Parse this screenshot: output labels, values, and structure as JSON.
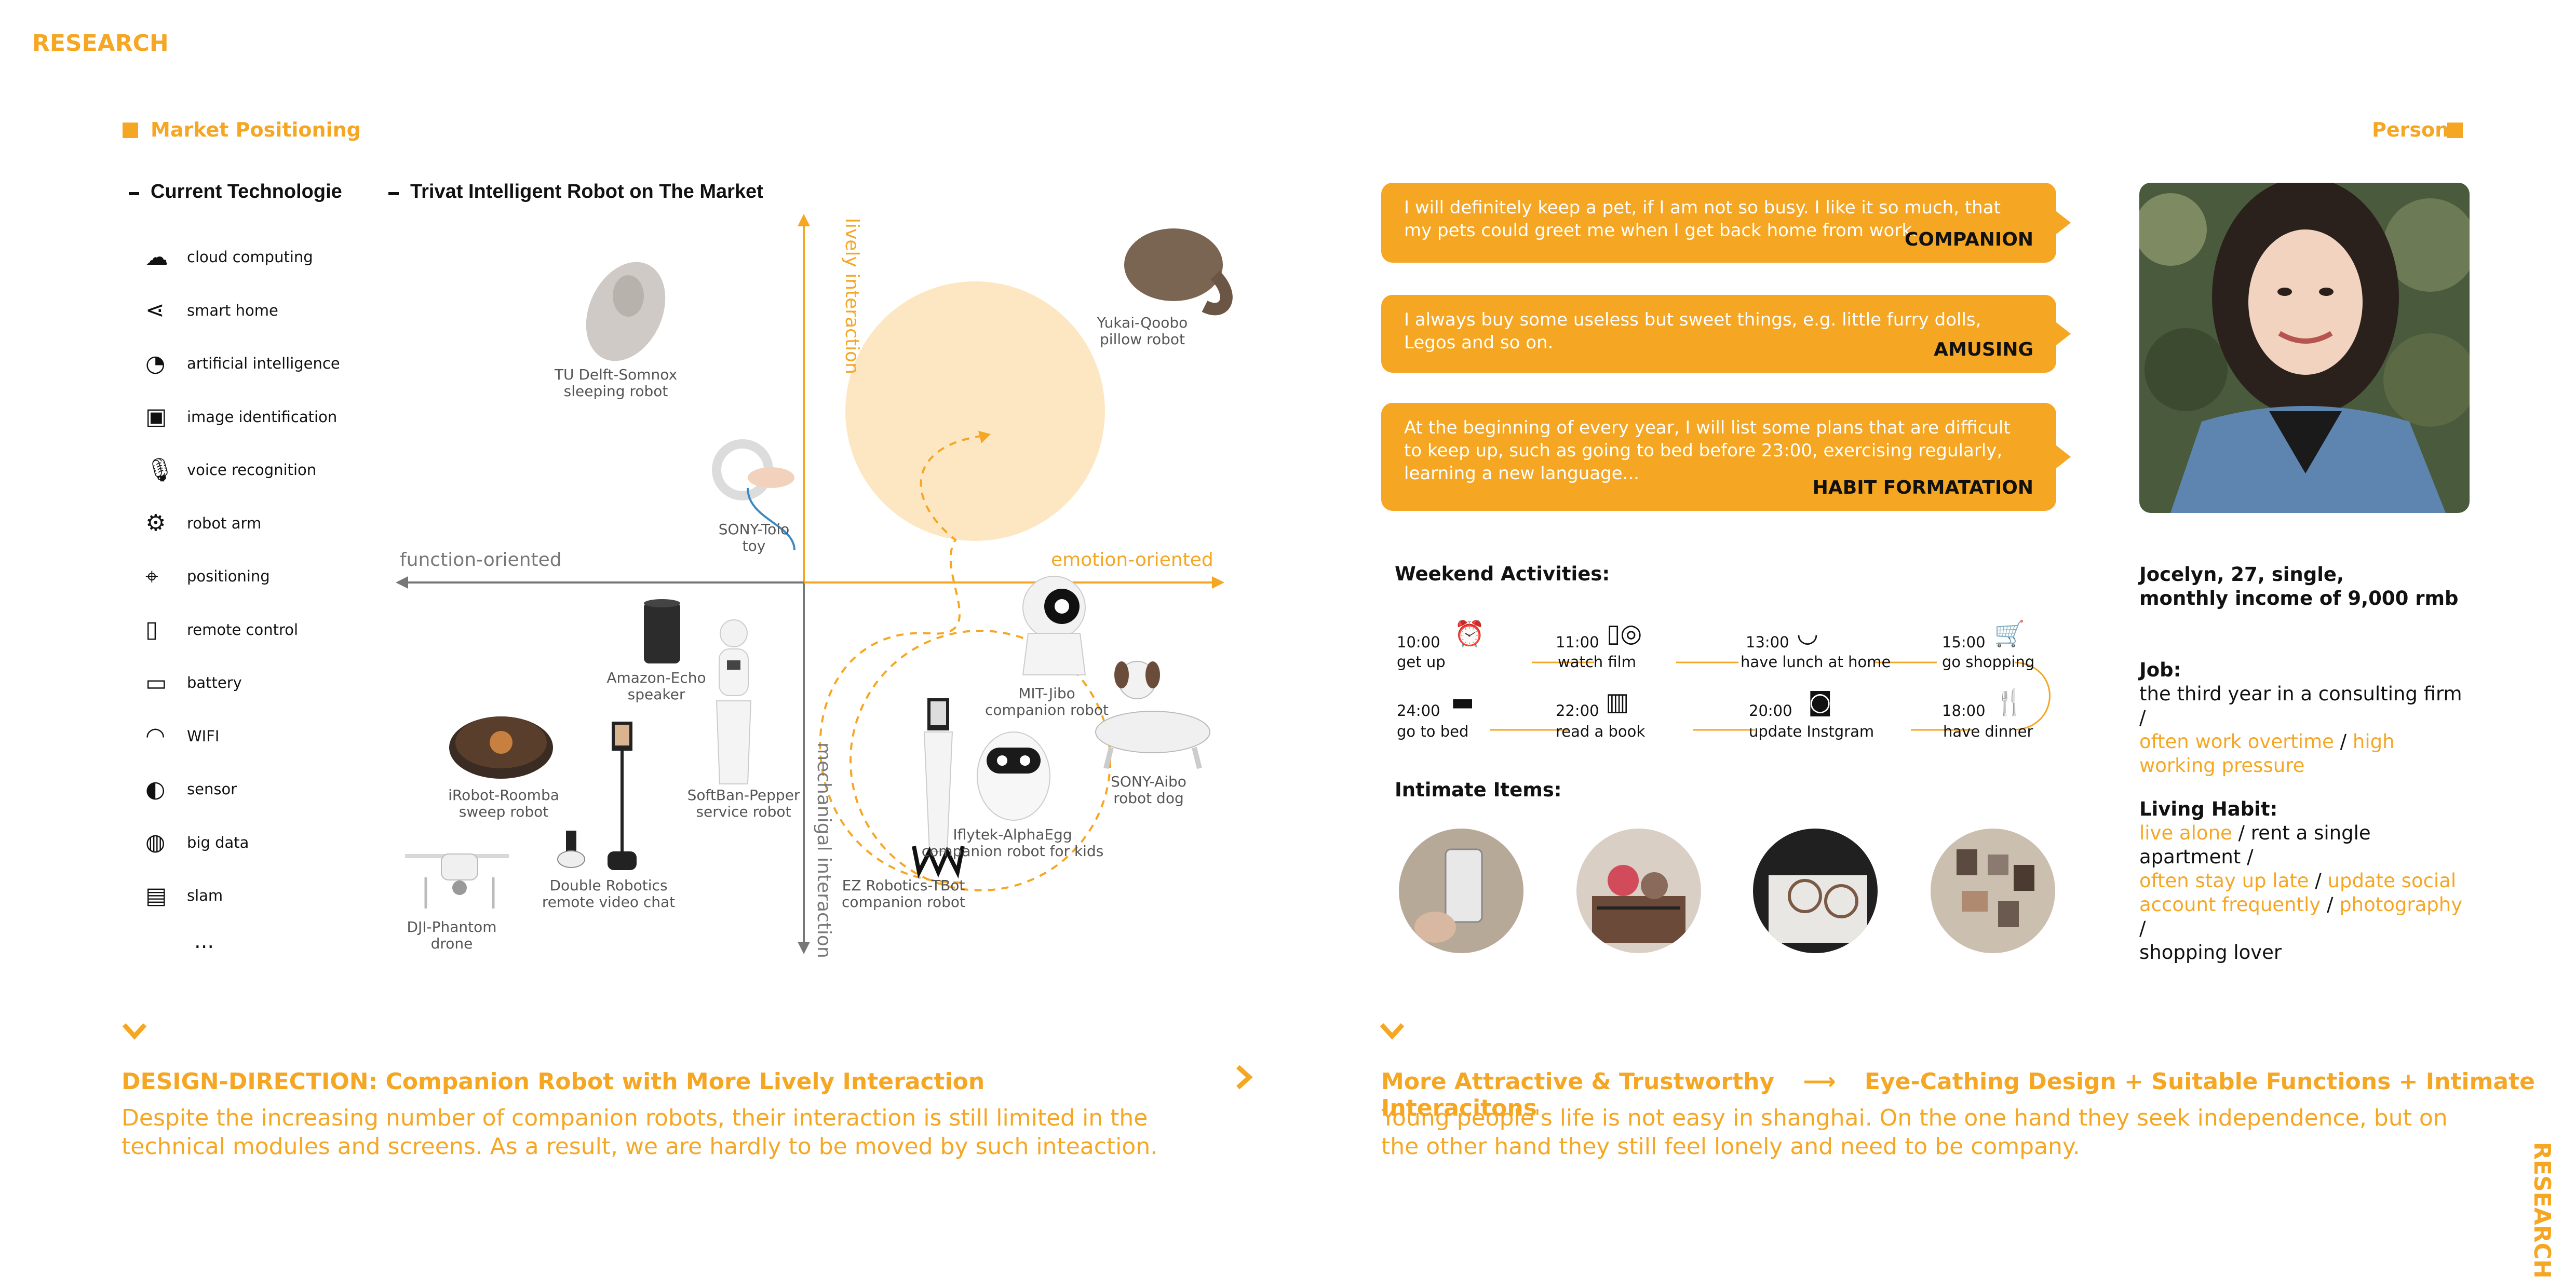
{
  "header": {
    "title": "RESEARCH",
    "side_label": "RESEARCH"
  },
  "market": {
    "title": "Market Positioning",
    "tech_heading": "Current Technologie",
    "robot_heading": "Trivat Intelligent Robot  on The Market",
    "tech_items": [
      {
        "label": "cloud computing",
        "icon": "cloud-icon"
      },
      {
        "label": "smart home",
        "icon": "share-icon"
      },
      {
        "label": "artificial intelligence",
        "icon": "ai-head-icon"
      },
      {
        "label": "image identification",
        "icon": "image-search-icon"
      },
      {
        "label": "voice recognition",
        "icon": "microphone-icon"
      },
      {
        "label": "robot arm",
        "icon": "robot-arm-icon"
      },
      {
        "label": "positioning",
        "icon": "location-pin-icon"
      },
      {
        "label": "remote control",
        "icon": "remote-phone-icon"
      },
      {
        "label": "battery",
        "icon": "battery-icon"
      },
      {
        "label": "WIFI",
        "icon": "wifi-icon"
      },
      {
        "label": "sensor",
        "icon": "sensor-ear-icon"
      },
      {
        "label": "big data",
        "icon": "globe-icon"
      },
      {
        "label": "slam",
        "icon": "slam-icon"
      }
    ],
    "tech_more": "...",
    "axes": {
      "top": "lively interaction",
      "bottom": "mechanigal interaction",
      "left": "function-oriented",
      "right": "emotion-oriented"
    },
    "robots": [
      {
        "name": "TU Delft-Somnox",
        "type": "sleeping robot"
      },
      {
        "name": "Yukai-Qoobo",
        "type": "pillow robot"
      },
      {
        "name": "SONY-Toio",
        "type": "toy"
      },
      {
        "name": "Amazon-Echo",
        "type": "speaker"
      },
      {
        "name": "MIT-Jibo",
        "type": "companion robot"
      },
      {
        "name": "iRobot-Roomba",
        "type": "sweep robot"
      },
      {
        "name": "SoftBan-Pepper",
        "type": "service robot"
      },
      {
        "name": "SONY-Aibo",
        "type": "robot dog"
      },
      {
        "name": "Double Robotics",
        "type": "remote video chat"
      },
      {
        "name": "Iflytek-AlphaEgg",
        "type": "companion robot for kids"
      },
      {
        "name": "EZ Robotics-TBot",
        "type": "companion robot"
      },
      {
        "name": "DJI-Phantom",
        "type": "drone"
      }
    ],
    "colors": {
      "accent": "#F5A623",
      "target_zone": "#FDE7C2",
      "axis": "#777777"
    }
  },
  "persona": {
    "title": "Persona",
    "quotes": [
      {
        "text": "I will definitely keep a pet, if I am not so busy. I like it so much, that my pets could greet me when I get back home from work.",
        "tag": "COMPANION"
      },
      {
        "text": "I always buy some useless but sweet things, e.g. little furry dolls, Legos and so on.",
        "tag": "AMUSING"
      },
      {
        "text": "At the beginning of every year, I will list some plans that are difficult to keep up, such as going to bed before 23:00, exercising regularly, learning a new language...",
        "tag": "HABIT FORMATATION"
      }
    ],
    "weekend_title": "Weekend Activities:",
    "activities": [
      {
        "time": "10:00",
        "label": "get up",
        "icon": "alarm-clock-icon"
      },
      {
        "time": "11:00",
        "label": "watch film",
        "icon": "tablet-film-icon"
      },
      {
        "time": "13:00",
        "label": "have lunch at home",
        "icon": "bowl-icon"
      },
      {
        "time": "15:00",
        "label": "go shopping",
        "icon": "cart-icon"
      },
      {
        "time": "18:00",
        "label": "have dinner",
        "icon": "cutlery-icon"
      },
      {
        "time": "20:00",
        "label": "update Instgram",
        "icon": "instagram-icon"
      },
      {
        "time": "22:00",
        "label": "read a book",
        "icon": "book-icon"
      },
      {
        "time": "24:00",
        "label": "go to bed",
        "icon": "bed-icon"
      }
    ],
    "intimate_title": "Intimate Items:",
    "intimate_items": [
      "phone-photo",
      "toys-photo",
      "glasses-photo",
      "photo-wall-photo"
    ],
    "profile": {
      "line1": "Jocelyn, 27, single,",
      "line2": "monthly income of 9,000 rmb"
    },
    "job": {
      "heading": "Job:",
      "plain": "the third year in a consulting firm /",
      "hl1": "often work overtime",
      "sep": " / ",
      "hl2": "high working pressure"
    },
    "habit": {
      "heading": "Living Habit:",
      "hl1": "live alone",
      "plain1": " / rent a single apartment /",
      "hl2": "often stay up late",
      "sep1": " / ",
      "hl3": "update social account frequently",
      "sep2": " / ",
      "hl4": "photography",
      "plain2": " /",
      "plain3": "shopping lover"
    }
  },
  "direction_left": {
    "title": "DESIGN-DIRECTION: Companion Robot with More Lively Interaction",
    "body": "Despite the increasing number of companion robots, their interaction is still limited in the technical modules and screens. As a result, we are hardly to be moved by such inteaction."
  },
  "direction_right": {
    "title_a": "More Attractive & Trustworthy",
    "arrow": "⟶",
    "title_b": "Eye-Cathing Design + Suitable Functions + Intimate Interacitons",
    "body": "Young people's life is not easy in shanghai. On the one hand they seek independence, but on the other hand they still feel lonely and need to be company."
  }
}
